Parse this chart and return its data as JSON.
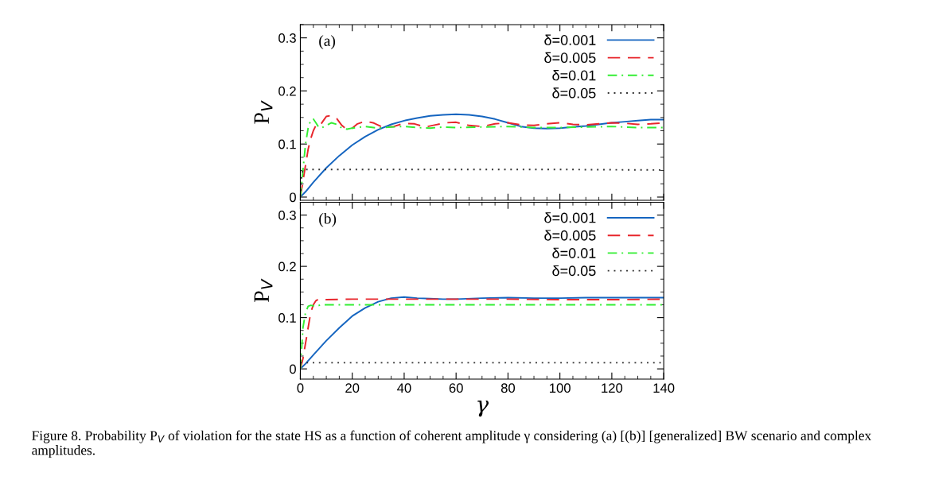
{
  "chart_data": [
    {
      "type": "line",
      "ylabel": "P$_{V}$",
      "annotations": [
        "(a)"
      ],
      "xlim": [
        0,
        140
      ],
      "ylim": [
        -0.006,
        0.325
      ],
      "xticks": [
        0,
        20,
        40,
        60,
        80,
        100,
        120,
        140
      ],
      "yticks": [
        0,
        0.1,
        0.2,
        0.3
      ],
      "tick_labels": "y",
      "legend": "top right",
      "grid": false,
      "series": [
        {
          "name": "δ=0.001",
          "color": "#1565c0",
          "line_style": "solid",
          "x": [
            0,
            2,
            5,
            10,
            15,
            20,
            25,
            30,
            35,
            40,
            45,
            50,
            55,
            60,
            65,
            70,
            75,
            80,
            85,
            90,
            95,
            100,
            105,
            110,
            115,
            120,
            125,
            130,
            135,
            140
          ],
          "values": [
            0,
            0.01,
            0.028,
            0.055,
            0.078,
            0.098,
            0.114,
            0.127,
            0.137,
            0.144,
            0.149,
            0.153,
            0.155,
            0.156,
            0.155,
            0.152,
            0.147,
            0.14,
            0.133,
            0.13,
            0.129,
            0.13,
            0.132,
            0.134,
            0.137,
            0.14,
            0.142,
            0.144,
            0.146,
            0.146
          ]
        },
        {
          "name": "δ=0.005",
          "color": "#e8252b",
          "line_style": "dashed",
          "x": [
            0,
            1,
            2,
            3,
            4,
            5,
            6,
            7,
            8,
            9,
            10,
            12,
            14,
            16,
            18,
            20,
            22,
            25,
            28,
            32,
            36,
            40,
            44,
            48,
            52,
            56,
            60,
            65,
            70,
            75,
            80,
            85,
            90,
            95,
            100,
            105,
            110,
            115,
            120,
            125,
            130,
            135,
            140
          ],
          "values": [
            0,
            0.03,
            0.06,
            0.09,
            0.11,
            0.125,
            0.135,
            0.14,
            0.138,
            0.145,
            0.152,
            0.154,
            0.148,
            0.135,
            0.127,
            0.13,
            0.138,
            0.143,
            0.14,
            0.131,
            0.133,
            0.139,
            0.138,
            0.132,
            0.136,
            0.14,
            0.141,
            0.135,
            0.133,
            0.138,
            0.14,
            0.136,
            0.135,
            0.138,
            0.14,
            0.137,
            0.136,
            0.138,
            0.14,
            0.139,
            0.137,
            0.138,
            0.14
          ]
        },
        {
          "name": "δ=0.01",
          "color": "#33ee33",
          "line_style": "dashdot",
          "x": [
            0,
            1,
            2,
            3,
            4,
            5,
            6,
            7,
            8,
            10,
            12,
            14,
            16,
            18,
            20,
            25,
            30,
            35,
            40,
            45,
            50,
            55,
            60,
            70,
            80,
            90,
            100,
            110,
            120,
            130,
            140
          ],
          "values": [
            0,
            0.05,
            0.1,
            0.13,
            0.145,
            0.147,
            0.14,
            0.132,
            0.13,
            0.135,
            0.14,
            0.137,
            0.13,
            0.128,
            0.13,
            0.133,
            0.13,
            0.132,
            0.133,
            0.131,
            0.13,
            0.132,
            0.131,
            0.132,
            0.133,
            0.131,
            0.131,
            0.132,
            0.133,
            0.131,
            0.131
          ]
        },
        {
          "name": "δ=0.05",
          "color": "#333333",
          "line_style": "dotted",
          "x": [
            0,
            0.5,
            1,
            20,
            60,
            100,
            140
          ],
          "values": [
            0,
            0.04,
            0.052,
            0.052,
            0.052,
            0.052,
            0.051
          ]
        }
      ]
    },
    {
      "type": "line",
      "ylabel": "P$_{V}$",
      "xlabel": "γ",
      "annotations": [
        "(b)",
        "Figure 8. Probability P$_{V}$ of violation for the state HS as a function of coherent amplitude γ considering (a) [(b)] [generalized] BW scenario and complex amplitudes."
      ],
      "xlim": [
        0,
        140
      ],
      "ylim": [
        -0.02,
        0.325
      ],
      "xticks": [
        0,
        20,
        40,
        60,
        80,
        100,
        120,
        140
      ],
      "yticks": [
        0,
        0.1,
        0.2,
        0.3
      ],
      "legend": "top right",
      "grid": false,
      "series": [
        {
          "name": "δ=0.001",
          "color": "#1565c0",
          "line_style": "solid",
          "x": [
            0,
            2,
            5,
            10,
            15,
            20,
            25,
            30,
            35,
            40,
            45,
            50,
            55,
            60,
            70,
            80,
            90,
            100,
            110,
            120,
            130,
            140
          ],
          "values": [
            0,
            0.01,
            0.027,
            0.055,
            0.08,
            0.103,
            0.119,
            0.131,
            0.138,
            0.14,
            0.138,
            0.137,
            0.136,
            0.136,
            0.138,
            0.139,
            0.138,
            0.138,
            0.139,
            0.139,
            0.139,
            0.139
          ]
        },
        {
          "name": "δ=0.005",
          "color": "#e8252b",
          "line_style": "dashed",
          "x": [
            0,
            1,
            2,
            3,
            4,
            5,
            6,
            7,
            10,
            20,
            40,
            60,
            80,
            100,
            120,
            140
          ],
          "values": [
            0,
            0.02,
            0.05,
            0.08,
            0.11,
            0.125,
            0.133,
            0.136,
            0.135,
            0.136,
            0.136,
            0.136,
            0.136,
            0.135,
            0.135,
            0.136
          ]
        },
        {
          "name": "δ=0.01",
          "color": "#33ee33",
          "line_style": "dashdot",
          "x": [
            0,
            0.5,
            1,
            2,
            3,
            4,
            6,
            8,
            20,
            60,
            100,
            140
          ],
          "values": [
            0,
            0.04,
            0.08,
            0.11,
            0.122,
            0.124,
            0.122,
            0.125,
            0.125,
            0.125,
            0.125,
            0.125
          ]
        },
        {
          "name": "δ=0.05",
          "color": "#333333",
          "line_style": "dotted",
          "x": [
            0,
            140
          ],
          "values": [
            0.012,
            0.012
          ]
        }
      ]
    }
  ]
}
